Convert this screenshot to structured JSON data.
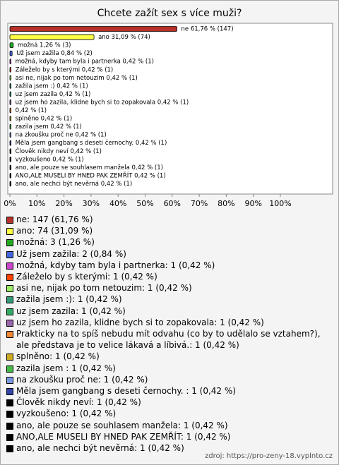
{
  "chart_data": {
    "type": "bar",
    "title": "Chcete zažít sex s více muži?",
    "categories": [
      "ne",
      "ano",
      "možná",
      "Už jsem zažila",
      "možná, kdyby tam byla i partnerka",
      "Záleželo by s kterými",
      "asi ne, nijak po tom netouzim",
      "zažila jsem :)",
      "uz jsem zazila",
      "uz jsem ho zazila, klidne bych si to zopakovala",
      "Prakticky na to spíš nebudu mít odvahu (co by to udělalo se vztahem?), ale představa je to velice lákavá a líbivá.",
      "splněno",
      "zazila jsem ",
      "na zkoušku proč ne",
      "Měla jsem gangbang s deseti černochy. ",
      "Člověk nikdy neví",
      "vyzkoušeno",
      "ano, ale pouze se souhlasem manžela",
      "ANO,ALE MUSELI BY HNED PAK ZEMŘÍT",
      "ano, ale nechci být nevěrná"
    ],
    "values": [
      61.76,
      31.09,
      1.26,
      0.84,
      0.42,
      0.42,
      0.42,
      0.42,
      0.42,
      0.42,
      0.42,
      0.42,
      0.42,
      0.42,
      0.42,
      0.42,
      0.42,
      0.42,
      0.42,
      0.42
    ],
    "value_labels": [
      "ne 61,76 % (147)",
      "ano 31,09 % (74)",
      "možná 1,26 % (3)",
      "Už jsem zažila 0,84 % (2)",
      "možná, kdyby tam byla i partnerka 0,42 % (1)",
      "Záleželo by s kterými 0,42 % (1)",
      "asi ne, nijak po tom netouzim 0,42 % (1)",
      "zažila jsem :) 0,42 % (1)",
      "uz jsem zazila 0,42 % (1)",
      "uz jsem ho zazila, klidne bych si to zopakovala 0,42 % (1)",
      "0,42 % (1)",
      "splněno 0,42 % (1)",
      "zazila jsem  0,42 % (1)",
      "na zkoušku proč ne 0,42 % (1)",
      "Měla jsem gangbang s deseti černochy.  0,42 % (1)",
      "Člověk nikdy neví 0,42 % (1)",
      "vyzkoušeno 0,42 % (1)",
      "ano, ale pouze se souhlasem manžela 0,42 % (1)",
      "ANO,ALE MUSELI BY HNED PAK ZEMŘÍT 0,42 % (1)",
      "ano, ale nechci být nevěrná 0,42 % (1)"
    ],
    "legend_labels": [
      "ne: 147 (61,76 %)",
      "ano: 74 (31,09 %)",
      "možná: 3 (1,26 %)",
      "Už jsem zažila: 2 (0,84 %)",
      "možná, kdyby tam byla i partnerka: 1 (0,42 %)",
      "Záleželo by s kterými: 1 (0,42 %)",
      "asi ne, nijak po tom netouzim: 1 (0,42 %)",
      "zažila jsem :): 1 (0,42 %)",
      "uz jsem zazila: 1 (0,42 %)",
      "uz jsem ho zazila, klidne bych si to zopakovala: 1 (0,42 %)",
      "Prakticky na to spíš nebudu mít odvahu (co by to udělalo se vztahem?), ale představa je to velice lákavá a líbivá.: 1 (0,42 %)",
      "splněno: 1 (0,42 %)",
      "zazila jsem : 1 (0,42 %)",
      "na zkoušku proč ne: 1 (0,42 %)",
      "Měla jsem gangbang s deseti černochy. : 1 (0,42 %)",
      "Člověk nikdy neví: 1 (0,42 %)",
      "vyzkoušeno: 1 (0,42 %)",
      "ano, ale pouze se souhlasem manžela: 1 (0,42 %)",
      "ANO,ALE MUSELI BY HNED PAK ZEMŘÍT: 1 (0,42 %)",
      "ano, ale nechci být nevěrná: 1 (0,42 %)"
    ],
    "colors": [
      "#b8302a",
      "#ffff44",
      "#22aa22",
      "#4466dd",
      "#cc44cc",
      "#ff4400",
      "#99ee66",
      "#339977",
      "#33aa66",
      "#9966aa",
      "#ee8833",
      "#ccaa22",
      "#44bb44",
      "#7799dd",
      "#3344aa",
      "#000000",
      "#000000",
      "#000000",
      "#000000",
      "#000000"
    ],
    "xlim": [
      0,
      100
    ],
    "xticks": [
      {
        "value": 0,
        "label": "0%"
      },
      {
        "value": 10,
        "label": "10%"
      },
      {
        "value": 20,
        "label": "20%"
      },
      {
        "value": 30,
        "label": "30%"
      },
      {
        "value": 40,
        "label": "40%"
      },
      {
        "value": 50,
        "label": "50%"
      },
      {
        "value": 60,
        "label": "60%"
      },
      {
        "value": 70,
        "label": "70%"
      },
      {
        "value": 80,
        "label": "80%"
      },
      {
        "value": 90,
        "label": "90%"
      },
      {
        "value": 100,
        "label": "100%"
      }
    ],
    "source": "zdroj: https://pro-zeny-18.vyplnto.cz"
  }
}
